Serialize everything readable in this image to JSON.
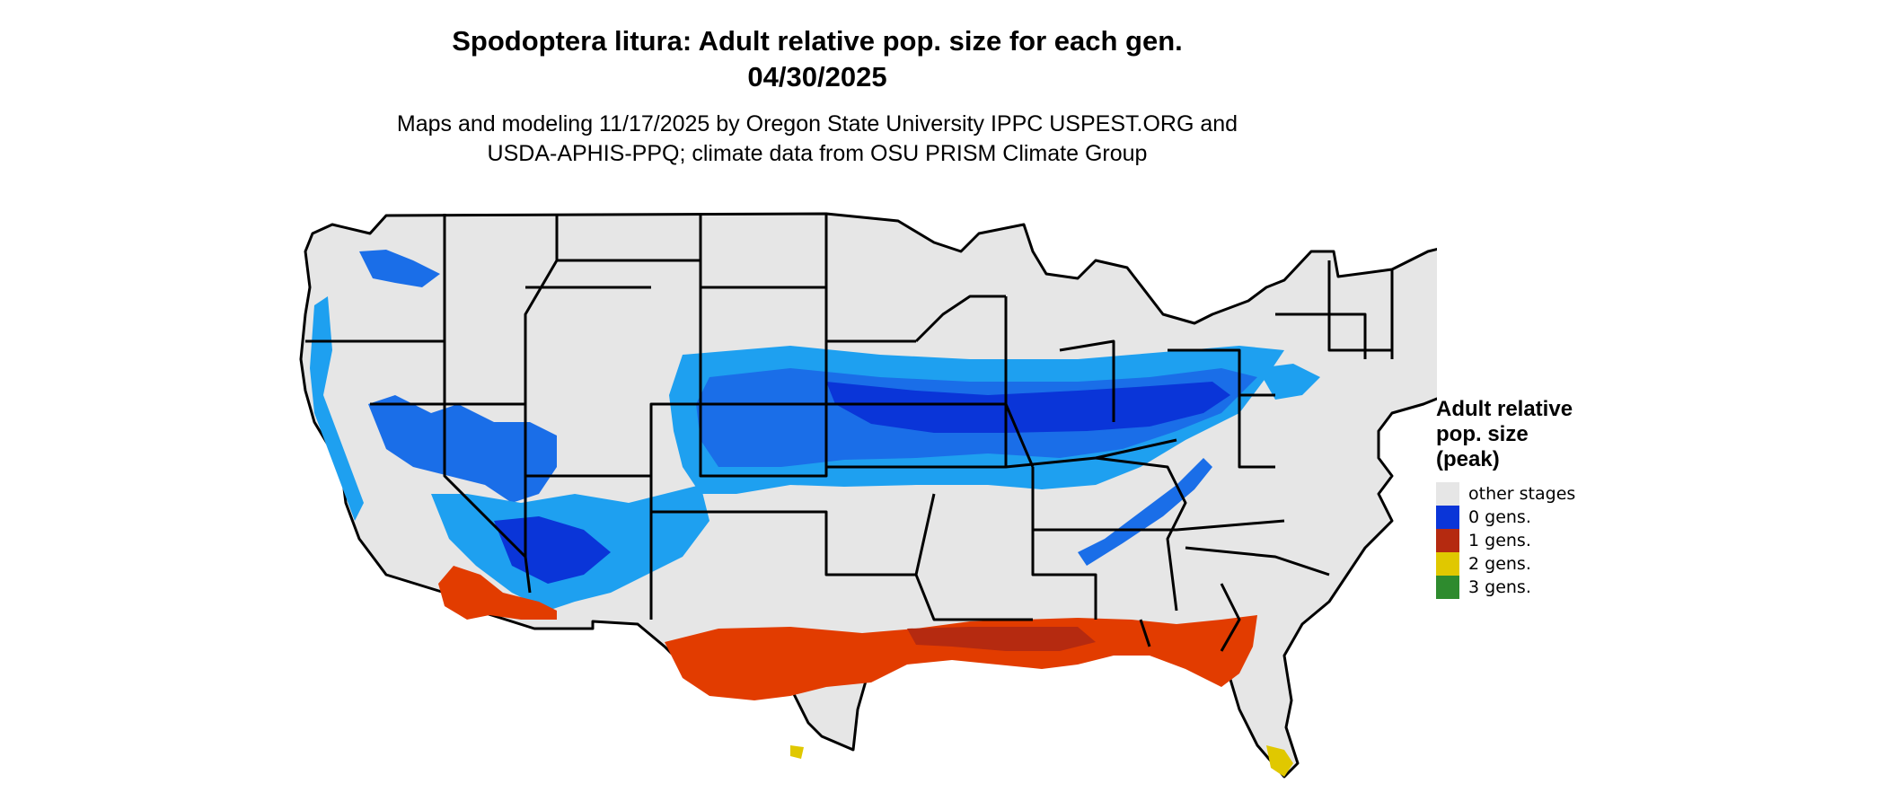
{
  "title_line1": "Spodoptera litura: Adult relative pop. size for each gen.",
  "title_line2": "04/30/2025",
  "subtitle_line1": "Maps and modeling 11/17/2025 by Oregon State University IPPC USPEST.ORG and",
  "subtitle_line2": "USDA-APHIS-PPQ; climate data from OSU PRISM Climate Group",
  "legend": {
    "title_line1": "Adult relative",
    "title_line2": "pop. size",
    "title_line3": "(peak)",
    "items": [
      {
        "label": "other stages",
        "color": "#e6e6e6"
      },
      {
        "label": "0 gens.",
        "color": "#0a35d8"
      },
      {
        "label": "1 gens.",
        "color": "#b52a10"
      },
      {
        "label": "2 gens.",
        "color": "#e0c800"
      },
      {
        "label": "3 gens.",
        "color": "#2e8b2e"
      }
    ]
  },
  "colors": {
    "land": "#e6e6e6",
    "blue_light": "#1ea0f0",
    "blue_mid": "#1a6ee8",
    "blue_dark": "#0a35d8",
    "red_bright": "#e23c00",
    "red_dark": "#b52a10",
    "yellow": "#e0c800",
    "border": "#000000"
  }
}
